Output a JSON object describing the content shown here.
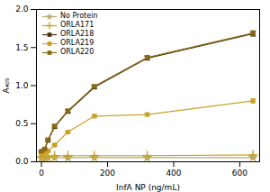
{
  "chart_data": {
    "type": "line",
    "xlabel": "InfA NP (ng/mL)",
    "ylabel": "A₄₀₅",
    "x": [
      0,
      10,
      20,
      40,
      80,
      160,
      320,
      640
    ],
    "xlim": [
      -15,
      660
    ],
    "xticks": [
      0,
      200,
      400,
      600
    ],
    "ylim": [
      0.0,
      2.0
    ],
    "yticks": [
      {
        "value": 0.0,
        "label": "0.0"
      },
      0.5,
      {
        "value": 1.0,
        "label": "1.0"
      },
      1.5,
      {
        "value": 2.0,
        "label": "2.0"
      }
    ],
    "legend": "upper left",
    "series": [
      {
        "name": "No Protein",
        "color": "#b8ab6e",
        "marker": "star",
        "values": [
          0.05,
          0.055,
          0.055,
          0.055,
          0.055,
          0.055,
          0.055,
          0.055
        ],
        "errors": [
          0.004,
          0.004,
          0.004,
          0.004,
          0.004,
          0.004,
          0.004,
          0.004
        ]
      },
      {
        "name": "ORLA171",
        "color": "#c9a227",
        "marker": "plus",
        "values": [
          0.06,
          0.07,
          0.07,
          0.08,
          0.08,
          0.08,
          0.08,
          0.09
        ],
        "errors": [
          0.005,
          0.005,
          0.005,
          0.005,
          0.005,
          0.005,
          0.005,
          0.005
        ]
      },
      {
        "name": "ORLA218",
        "color": "#4a3210",
        "marker": "square",
        "values": [
          0.13,
          0.16,
          0.28,
          0.46,
          0.66,
          0.98,
          1.36,
          1.68
        ],
        "errors": [
          0.01,
          0.01,
          0.015,
          0.02,
          0.02,
          0.02,
          0.025,
          0.03
        ]
      },
      {
        "name": "ORLA219",
        "color": "#c9a227",
        "marker": "circle",
        "values": [
          0.1,
          0.11,
          0.14,
          0.22,
          0.39,
          0.6,
          0.62,
          0.8
        ],
        "errors": [
          0.01,
          0.01,
          0.01,
          0.01,
          0.015,
          0.02,
          0.02,
          0.025
        ]
      },
      {
        "name": "ORLA220",
        "color": "#8b6914",
        "marker": "square",
        "values": [
          0.14,
          0.17,
          0.29,
          0.47,
          0.67,
          0.99,
          1.37,
          1.69
        ],
        "errors": [
          0.01,
          0.01,
          0.015,
          0.02,
          0.02,
          0.02,
          0.025,
          0.03
        ]
      }
    ]
  }
}
